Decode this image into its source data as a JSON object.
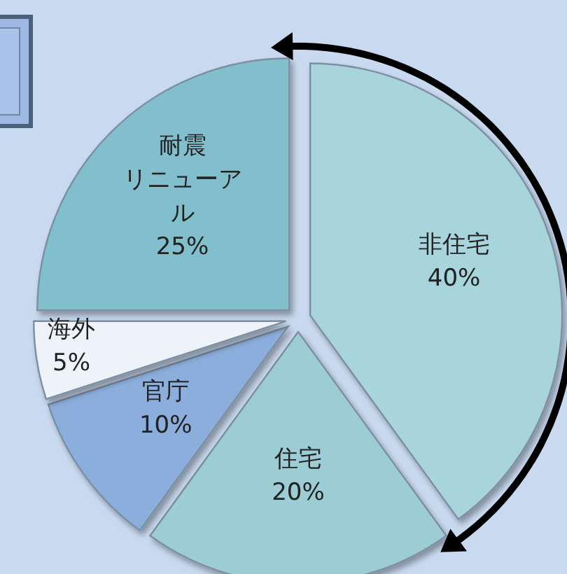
{
  "chart_data": {
    "type": "pie",
    "categories": [
      "非住宅",
      "住宅",
      "官庁",
      "海外",
      "耐震リニューアル"
    ],
    "values": [
      40,
      20,
      10,
      5,
      25
    ],
    "colors": [
      "#a8d4dc",
      "#9ccdd5",
      "#8caedd",
      "#eef3fa",
      "#80bfcb"
    ],
    "value_labels": [
      "40%",
      "20%",
      "10%",
      "5%",
      "25%"
    ]
  }
}
